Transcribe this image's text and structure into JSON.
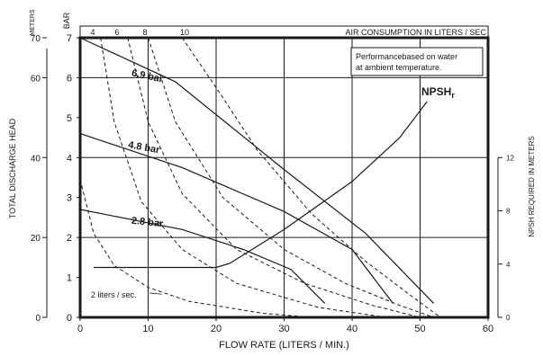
{
  "chart_data": {
    "type": "line",
    "title": "",
    "xlabel": "FLOW RATE (LITERS / MIN.)",
    "ylabel_left_meters": "TOTAL DISCHARGE HEAD",
    "ylabel_left_bar_unit": "BAR",
    "ylabel_left_meters_unit": "METERS",
    "ylabel_right": "NPSH REQUIRED IN METERS",
    "top_axis_label": "AIR CONSUMPTION IN LITERS / SEC",
    "note": [
      "Performancebased on water",
      "at ambient temperature."
    ],
    "xlim": [
      0,
      60
    ],
    "ylim_bar": [
      0,
      7
    ],
    "x_ticks": [
      "0",
      "10",
      "20",
      "30",
      "40",
      "50",
      "60"
    ],
    "y_ticks_bar": [
      "0",
      "1",
      "2",
      "3",
      "4",
      "5",
      "6",
      "7"
    ],
    "y_ticks_meters": [
      "0",
      "20",
      "40",
      "60",
      "70"
    ],
    "y_ticks_npsh": [
      "0",
      "4",
      "8",
      "12"
    ],
    "top_ticks": [
      "4",
      "6",
      "8",
      "10"
    ],
    "grid": true,
    "pressure_curves": [
      {
        "name": "6.9 bar",
        "points": [
          [
            0,
            7.0
          ],
          [
            14,
            5.9
          ],
          [
            30,
            3.7
          ],
          [
            42,
            2.1
          ],
          [
            52,
            0.35
          ]
        ]
      },
      {
        "name": "4.8 bar",
        "points": [
          [
            0,
            4.6
          ],
          [
            15,
            3.75
          ],
          [
            30,
            2.65
          ],
          [
            40,
            1.7
          ],
          [
            46,
            0.35
          ]
        ]
      },
      {
        "name": "2.8 bar",
        "points": [
          [
            0,
            2.7
          ],
          [
            15,
            2.2
          ],
          [
            24,
            1.7
          ],
          [
            31,
            1.2
          ],
          [
            36,
            0.35
          ]
        ]
      }
    ],
    "npsh_series": {
      "name": "NPSHr",
      "label_main": "NPSH",
      "label_sub": "r",
      "points": [
        [
          2,
          1.25
        ],
        [
          20,
          1.25
        ],
        [
          22,
          1.35
        ],
        [
          30,
          2.2
        ],
        [
          40,
          3.4
        ],
        [
          47,
          4.5
        ],
        [
          51,
          5.4
        ]
      ]
    },
    "air_consumption_curves": [
      {
        "name": "2 liters / sec.",
        "label": "2 liters / sec.",
        "points": [
          [
            0,
            3.45
          ],
          [
            2,
            2.1
          ],
          [
            5,
            1.3
          ],
          [
            10,
            0.75
          ],
          [
            16,
            0.4
          ],
          [
            27,
            0.1
          ],
          [
            34,
            0.0
          ]
        ]
      },
      {
        "name": "4",
        "points": [
          [
            3,
            7.0
          ],
          [
            5,
            4.9
          ],
          [
            9,
            2.9
          ],
          [
            15,
            1.7
          ],
          [
            23,
            0.85
          ],
          [
            35,
            0.25
          ],
          [
            45,
            0.0
          ]
        ]
      },
      {
        "name": "6",
        "points": [
          [
            7,
            7.0
          ],
          [
            10,
            4.9
          ],
          [
            15,
            3.1
          ],
          [
            23,
            1.7
          ],
          [
            33,
            0.85
          ],
          [
            43,
            0.3
          ],
          [
            50,
            0.0
          ]
        ]
      },
      {
        "name": "8",
        "points": [
          [
            10,
            7.0
          ],
          [
            14,
            4.9
          ],
          [
            21,
            3.0
          ],
          [
            30,
            1.7
          ],
          [
            39,
            0.85
          ],
          [
            47,
            0.3
          ],
          [
            52,
            0.0
          ]
        ]
      },
      {
        "name": "10",
        "points": [
          [
            15,
            7.0
          ],
          [
            21,
            5.5
          ],
          [
            26,
            4.2
          ],
          [
            34,
            2.6
          ],
          [
            42,
            1.4
          ],
          [
            49,
            0.5
          ],
          [
            53,
            0.0
          ]
        ]
      }
    ],
    "colors": {
      "line": "#1a1a1a",
      "grid": "#1a1a1a",
      "background": "#ffffff"
    }
  }
}
